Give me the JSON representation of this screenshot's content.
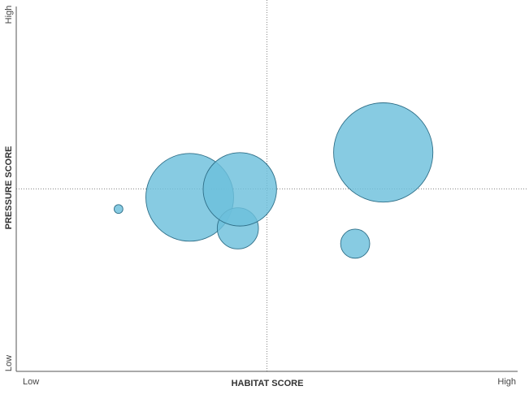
{
  "chart_data": {
    "type": "bubble",
    "xlabel": "HABITAT SCORE",
    "ylabel": "PRESSURE SCORE",
    "x_tick_labels": [
      "Low",
      "High"
    ],
    "y_tick_labels": [
      "Low",
      "High"
    ],
    "xlim": [
      0,
      100
    ],
    "ylim": [
      0,
      100
    ],
    "x_divider": 50,
    "y_divider": 50,
    "grid": false,
    "legend": "none",
    "colors": {
      "bubble_fill": "#6cc0dc",
      "bubble_stroke": "#2f6f88",
      "axis": "#555555",
      "divider": "#888888"
    },
    "series": [
      {
        "points": [
          {
            "x": 20.4,
            "y": 44.5,
            "size": 1
          },
          {
            "x": 34.6,
            "y": 47.7,
            "size": 100
          },
          {
            "x": 44.2,
            "y": 39.2,
            "size": 22
          },
          {
            "x": 44.6,
            "y": 49.9,
            "size": 70
          },
          {
            "x": 67.6,
            "y": 35.0,
            "size": 11
          },
          {
            "x": 73.2,
            "y": 60.0,
            "size": 128
          }
        ]
      }
    ]
  }
}
